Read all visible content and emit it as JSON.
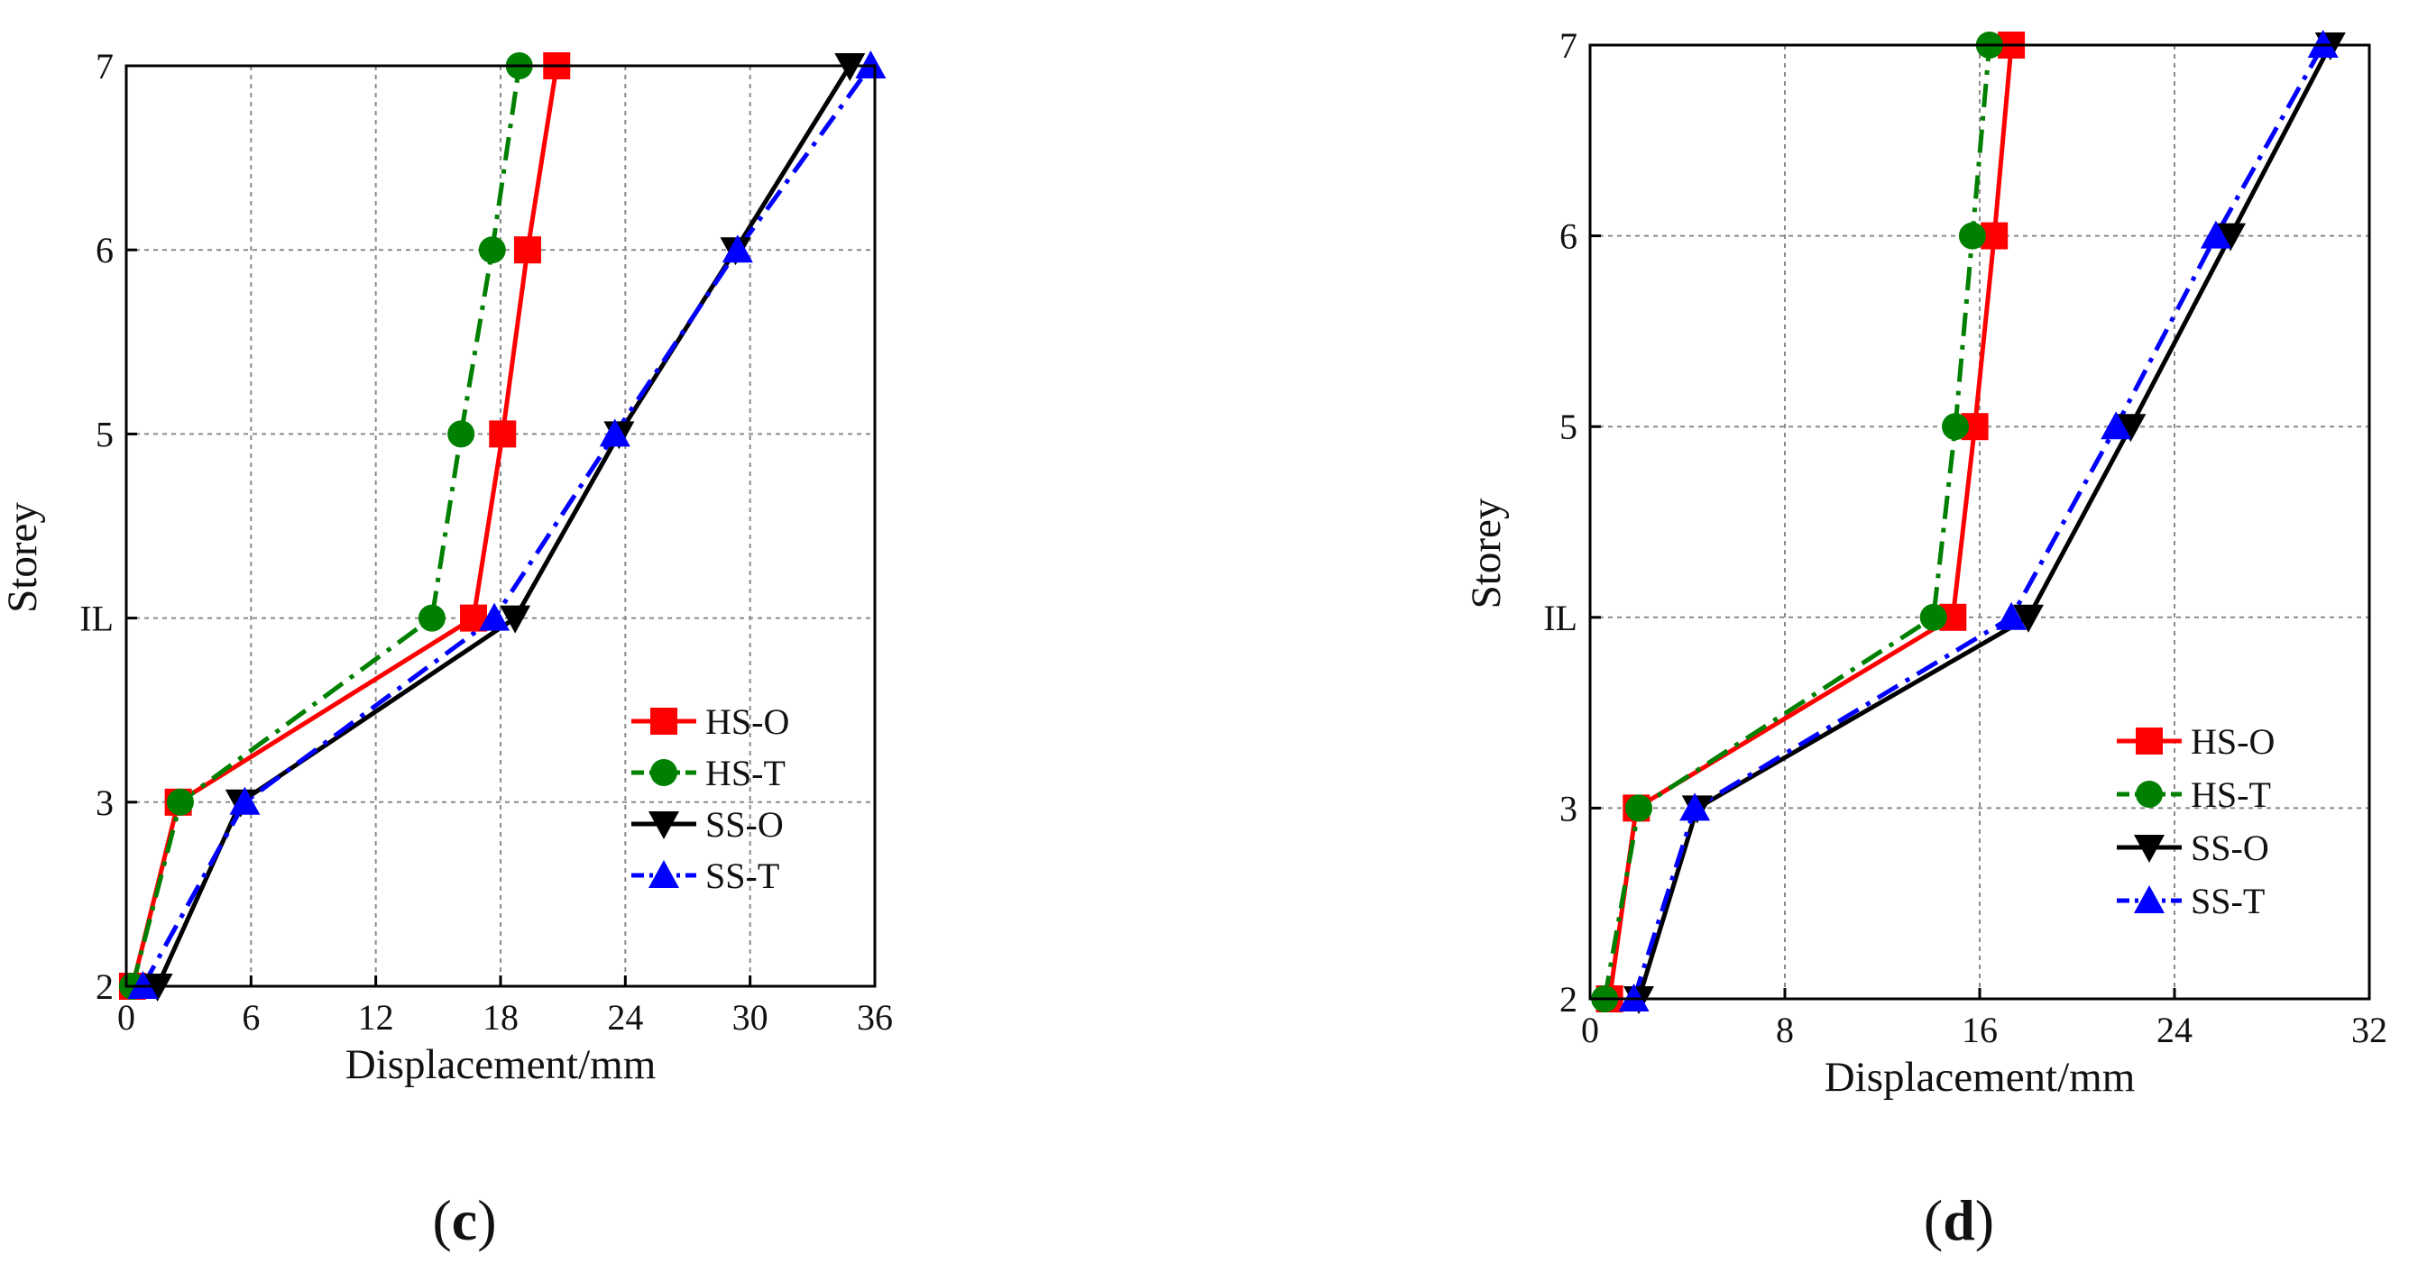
{
  "chart_data": [
    {
      "type": "line",
      "panel_label": "c",
      "panel_label_open": "(",
      "panel_label_close": ")",
      "xlabel": "Displacement/mm",
      "ylabel": "Storey",
      "xlim": [
        0,
        36
      ],
      "ylim": [
        2,
        7
      ],
      "grid": true,
      "x_ticks": [
        0,
        6,
        12,
        18,
        24,
        30,
        36
      ],
      "y_ticks": [
        {
          "value": 2,
          "label": "2"
        },
        {
          "value": 3,
          "label": "3"
        },
        {
          "value": 4,
          "label": "IL"
        },
        {
          "value": 5,
          "label": "5"
        },
        {
          "value": 6,
          "label": "6"
        },
        {
          "value": 7,
          "label": "7"
        }
      ],
      "legend_position": "lower-right",
      "series": [
        {
          "name": "HS-O",
          "color": "#ff0000",
          "marker": "square",
          "dash": "solid",
          "x": [
            0.3,
            2.5,
            16.7,
            18.1,
            19.3,
            20.7
          ],
          "y": [
            2,
            3,
            4,
            5,
            6,
            7
          ]
        },
        {
          "name": "HS-T",
          "color": "#008000",
          "marker": "circle",
          "dash": "dashdot",
          "x": [
            0.3,
            2.6,
            14.7,
            16.1,
            17.6,
            18.9
          ],
          "y": [
            2,
            3,
            4,
            5,
            6,
            7
          ]
        },
        {
          "name": "SS-O",
          "color": "#000000",
          "marker": "triangle-down",
          "dash": "solid",
          "x": [
            1.5,
            5.5,
            18.7,
            23.7,
            29.3,
            34.8
          ],
          "y": [
            2,
            3,
            4,
            5,
            6,
            7
          ]
        },
        {
          "name": "SS-T",
          "color": "#0000ff",
          "marker": "triangle-up",
          "dash": "dashdot",
          "x": [
            0.8,
            5.7,
            17.7,
            23.5,
            29.4,
            35.8
          ],
          "y": [
            2,
            3,
            4,
            5,
            6,
            7
          ]
        }
      ]
    },
    {
      "type": "line",
      "panel_label": "d",
      "panel_label_open": "(",
      "panel_label_close": ")",
      "xlabel": "Displacement/mm",
      "ylabel": "Storey",
      "xlim": [
        0,
        32
      ],
      "ylim": [
        2,
        7
      ],
      "grid": true,
      "x_ticks": [
        0,
        8,
        16,
        24,
        32
      ],
      "y_ticks": [
        {
          "value": 2,
          "label": "2"
        },
        {
          "value": 3,
          "label": "3"
        },
        {
          "value": 4,
          "label": "IL"
        },
        {
          "value": 5,
          "label": "5"
        },
        {
          "value": 6,
          "label": "6"
        },
        {
          "value": 7,
          "label": "7"
        }
      ],
      "legend_position": "lower-right",
      "series": [
        {
          "name": "HS-O",
          "color": "#ff0000",
          "marker": "square",
          "dash": "solid",
          "x": [
            0.8,
            1.9,
            14.9,
            15.8,
            16.6,
            17.3
          ],
          "y": [
            2,
            3,
            4,
            5,
            6,
            7
          ]
        },
        {
          "name": "HS-T",
          "color": "#008000",
          "marker": "circle",
          "dash": "dashdot",
          "x": [
            0.6,
            2.0,
            14.1,
            15.0,
            15.7,
            16.4
          ],
          "y": [
            2,
            3,
            4,
            5,
            6,
            7
          ]
        },
        {
          "name": "SS-O",
          "color": "#000000",
          "marker": "triangle-down",
          "dash": "solid",
          "x": [
            2.0,
            4.4,
            18.0,
            22.2,
            26.3,
            30.4
          ],
          "y": [
            2,
            3,
            4,
            5,
            6,
            7
          ]
        },
        {
          "name": "SS-T",
          "color": "#0000ff",
          "marker": "triangle-up",
          "dash": "dashdot",
          "x": [
            1.8,
            4.3,
            17.3,
            21.6,
            25.7,
            30.1
          ],
          "y": [
            2,
            3,
            4,
            5,
            6,
            7
          ]
        }
      ]
    }
  ]
}
